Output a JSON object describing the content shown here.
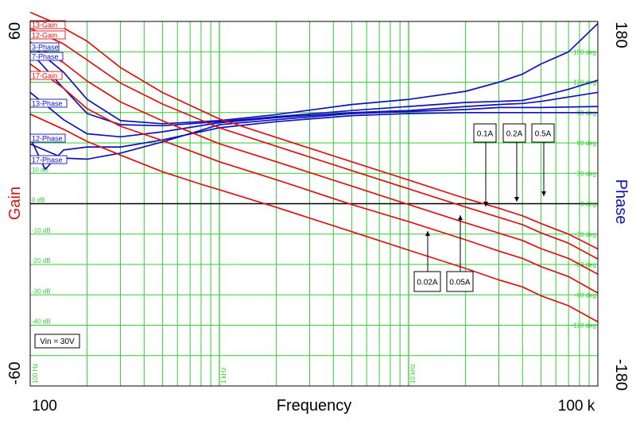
{
  "chart_data": {
    "type": "line",
    "xlabel": "Frequency",
    "ylabel_left": "Gain",
    "ylabel_right": "Phase",
    "x_scale": "log",
    "xlim": [
      100,
      100000
    ],
    "x_tick_labels": [
      "100",
      "100 k"
    ],
    "ylim_left": [
      -60,
      60
    ],
    "ylim_right": [
      -180,
      180
    ],
    "y_tick_labels_left": [
      "60",
      "-60"
    ],
    "y_tick_labels_right": [
      "180",
      "-180"
    ],
    "grid": true,
    "grid_gain_labels": [
      "10 dB",
      "0 dB",
      "-10 dB",
      "-20 dB",
      "-30 dB",
      "-40 dB"
    ],
    "grid_gain_values": [
      10,
      0,
      -10,
      -20,
      -30,
      -40
    ],
    "grid_phase_labels": [
      "150 deg",
      "120 deg",
      "90 deg",
      "60 deg",
      "30 deg",
      "0 deg",
      "-30 deg",
      "-60 deg",
      "-90 deg",
      "-120 deg"
    ],
    "grid_phase_values": [
      150,
      120,
      90,
      60,
      30,
      0,
      -30,
      -60,
      -90,
      -120
    ],
    "grid_freq_labels": [
      "100 Hz",
      "1 kHz",
      "10 kHz"
    ],
    "grid_freq_values": [
      100,
      1000,
      10000
    ],
    "colors": {
      "gain": "#dd1111",
      "phase": "#1111bb",
      "grid": "#33cc33",
      "zero": "#000000"
    },
    "gain_series": [
      {
        "name": "17-Gain",
        "axis": "left",
        "x": [
          100,
          150,
          200,
          300,
          500,
          800,
          1000,
          2000,
          5000,
          10000,
          20000,
          30000,
          40000,
          50000,
          70000,
          100000
        ],
        "y": [
          29.5,
          24.5,
          20.5,
          16.0,
          10.5,
          6.4,
          4.6,
          -1.2,
          -9.2,
          -15.3,
          -21.3,
          -25.1,
          -27.4,
          -30.3,
          -33.6,
          -38.9
        ]
      },
      {
        "name": "12-Gain",
        "axis": "left",
        "x": [
          100,
          150,
          200,
          300,
          500,
          1000,
          2000,
          5000,
          10000,
          20000,
          30000,
          40000,
          50000,
          70000,
          100000
        ],
        "y": [
          46.0,
          38.0,
          31.3,
          25.5,
          20.8,
          13.8,
          7.9,
          -0.3,
          -5.9,
          -11.9,
          -15.6,
          -18.0,
          -20.7,
          -24.0,
          -29.4
        ]
      },
      {
        "name": "13-Gain",
        "axis": "left",
        "x": [
          100,
          150,
          200,
          300,
          500,
          1000,
          2000,
          5000,
          10000,
          20000,
          30000,
          40000,
          50000,
          70000,
          100000
        ],
        "y": [
          53.2,
          46.4,
          40.4,
          33.5,
          27.3,
          19.7,
          13.8,
          5.8,
          -0.3,
          -6.3,
          -9.7,
          -12.1,
          -14.8,
          -18.0,
          -23.2
        ]
      },
      {
        "name": "",
        "axis": "left",
        "x": [
          100,
          150,
          200,
          300,
          500,
          1000,
          2000,
          5000,
          10000,
          20000,
          30000,
          40000,
          50000,
          70000,
          100000
        ],
        "y": [
          57.7,
          52.6,
          47.3,
          39.7,
          32.8,
          25.0,
          18.9,
          10.9,
          4.9,
          -1.1,
          -4.5,
          -6.9,
          -9.6,
          -13.0,
          -18.2
        ]
      },
      {
        "name": "",
        "axis": "left",
        "x": [
          100,
          130,
          200,
          300,
          500,
          1000,
          2000,
          5000,
          10000,
          20000,
          30000,
          40000,
          50000,
          70000,
          100000
        ],
        "y": [
          63.0,
          60.0,
          53.5,
          44.8,
          36.6,
          27.9,
          21.8,
          13.8,
          7.8,
          1.7,
          -1.5,
          -4.0,
          -6.5,
          -10.0,
          -14.9
        ]
      }
    ],
    "phase_series": [
      {
        "name": "17-Phase",
        "axis": "right",
        "x": [
          100,
          120,
          150,
          200,
          300,
          500,
          1000,
          2000,
          5000,
          10000,
          20000,
          30000,
          50000,
          100000
        ],
        "y": [
          65.0,
          34.0,
          53.0,
          56.0,
          56.0,
          63.0,
          75.0,
          81.0,
          87.0,
          89.0,
          90.0,
          90.0,
          90.0,
          90.0
        ]
      },
      {
        "name": "12-Phase",
        "axis": "right",
        "x": [
          100,
          150,
          200,
          300,
          500,
          1000,
          2000,
          5000,
          10000,
          20000,
          30000,
          50000,
          100000
        ],
        "y": [
          59.0,
          45.0,
          44.0,
          50.0,
          61.0,
          78.0,
          83.0,
          89.0,
          91.0,
          93.0,
          95.0,
          95.0,
          96.0
        ]
      },
      {
        "name": "13-Phase",
        "axis": "right",
        "x": [
          100,
          150,
          200,
          300,
          500,
          1000,
          2000,
          5000,
          10000,
          20000,
          30000,
          40000,
          50000,
          100000
        ],
        "y": [
          110.0,
          83.0,
          69.0,
          66.0,
          71.0,
          80.0,
          85.0,
          90.0,
          92.0,
          96.0,
          98.0,
          99.0,
          101.0,
          110.0
        ]
      },
      {
        "name": "7-Phase",
        "axis": "right",
        "x": [
          100,
          150,
          200,
          300,
          500,
          1000,
          2000,
          5000,
          10000,
          20000,
          30000,
          40000,
          50000,
          70000,
          100000
        ],
        "y": [
          150.0,
          114.0,
          89.0,
          78.0,
          77.0,
          81.0,
          86.0,
          92.0,
          96.0,
          100.0,
          101.0,
          102.0,
          106.0,
          113.0,
          122.0
        ]
      },
      {
        "name": "3-Phase",
        "axis": "right",
        "x": [
          100,
          150,
          200,
          300,
          500,
          1000,
          2000,
          5000,
          10000,
          20000,
          30000,
          40000,
          50000,
          70000,
          100000
        ],
        "y": [
          157.0,
          130.0,
          103.0,
          82.0,
          79.0,
          82.0,
          88.0,
          98.0,
          103.0,
          111.0,
          120.0,
          128.0,
          138.0,
          150.0,
          178.0
        ]
      }
    ],
    "trace_labels": [
      "13-Gain",
      "12-Gain",
      "3-Phase",
      "7-Phase",
      "17-Gain",
      "13-Phase",
      "12-Phase",
      "17-Phase"
    ],
    "annotations": [
      {
        "text": "Vin = 30V"
      },
      {
        "text": "0.1A",
        "x": 22000,
        "y": 0
      },
      {
        "text": "0.2A",
        "x": 40000,
        "y": 0
      },
      {
        "text": "0.5A",
        "x": 70000,
        "y": 3
      },
      {
        "text": "0.02A",
        "x": 15000,
        "y": -12
      },
      {
        "text": "0.05A",
        "x": 26000,
        "y": -5
      }
    ]
  }
}
